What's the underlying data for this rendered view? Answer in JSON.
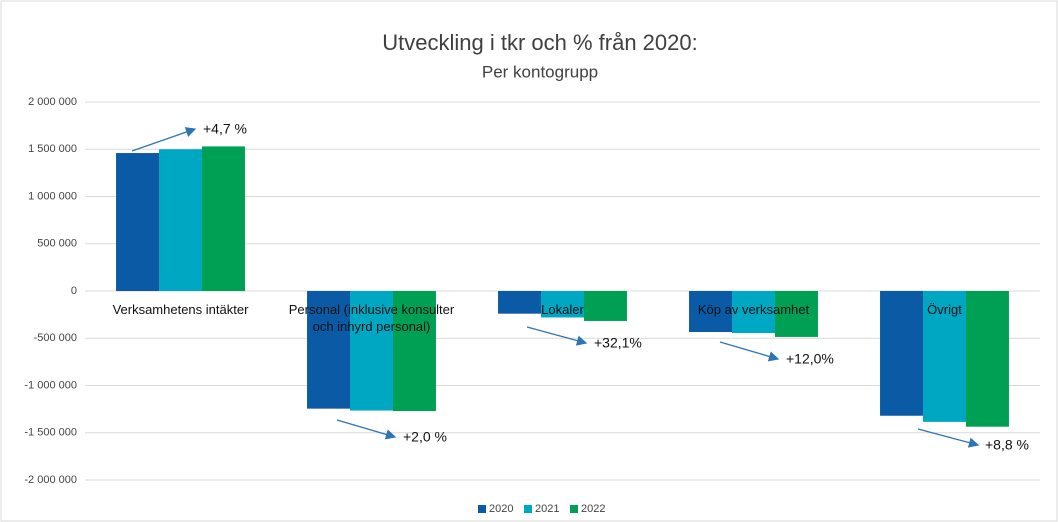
{
  "chart_data": {
    "type": "bar",
    "title": "Utveckling i tkr och % från 2020:",
    "subtitle": "Per kontogrupp",
    "categories": [
      "Verksamhetens intäkter",
      "Personal (inklusive konsulter och inhyrd personal)",
      "Lokaler",
      "Köp av verksamhet",
      "Övrigt"
    ],
    "series": [
      {
        "name": "2020",
        "color": "#0b5aa6",
        "values": [
          1460000,
          -1245000,
          -240000,
          -434000,
          -1320000
        ]
      },
      {
        "name": "2021",
        "color": "#00a7c2",
        "values": [
          1500000,
          -1265000,
          -280000,
          -445000,
          -1385000
        ]
      },
      {
        "name": "2022",
        "color": "#00a054",
        "values": [
          1530000,
          -1270000,
          -317000,
          -486000,
          -1436000
        ]
      }
    ],
    "ylim": [
      -2000000,
      2000000
    ],
    "yticks": [
      {
        "value": -2000000,
        "label": "-2 000 000"
      },
      {
        "value": -1500000,
        "label": "-1 500 000"
      },
      {
        "value": -1000000,
        "label": "-1 000 000"
      },
      {
        "value": -500000,
        "label": "-500 000"
      },
      0,
      {
        "value": 500000,
        "label": "500 000"
      },
      {
        "value": 1000000,
        "label": "1 000 000"
      },
      {
        "value": 1500000,
        "label": "1 500 000"
      },
      {
        "value": 2000000,
        "label": "2 000 000"
      }
    ],
    "grid": true,
    "legend": "bottom",
    "annotations": [
      "+4,7 %",
      "+2,0 %",
      "+32,1%",
      "+12,0%",
      "+8,8 %"
    ]
  }
}
